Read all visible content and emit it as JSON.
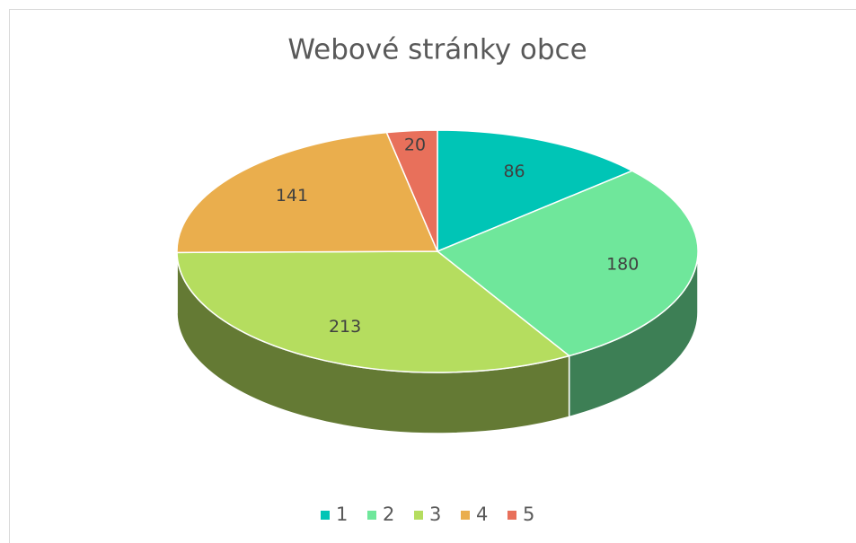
{
  "chart_data": {
    "type": "pie",
    "title": "Webové stránky obce",
    "categories": [
      "1",
      "2",
      "3",
      "4",
      "5"
    ],
    "values": [
      86,
      180,
      213,
      141,
      20
    ],
    "colors": [
      "#00c5b6",
      "#6fe79b",
      "#b5dd5f",
      "#eaae4d",
      "#e8705b"
    ],
    "three_d": true,
    "legend": "bottom"
  }
}
